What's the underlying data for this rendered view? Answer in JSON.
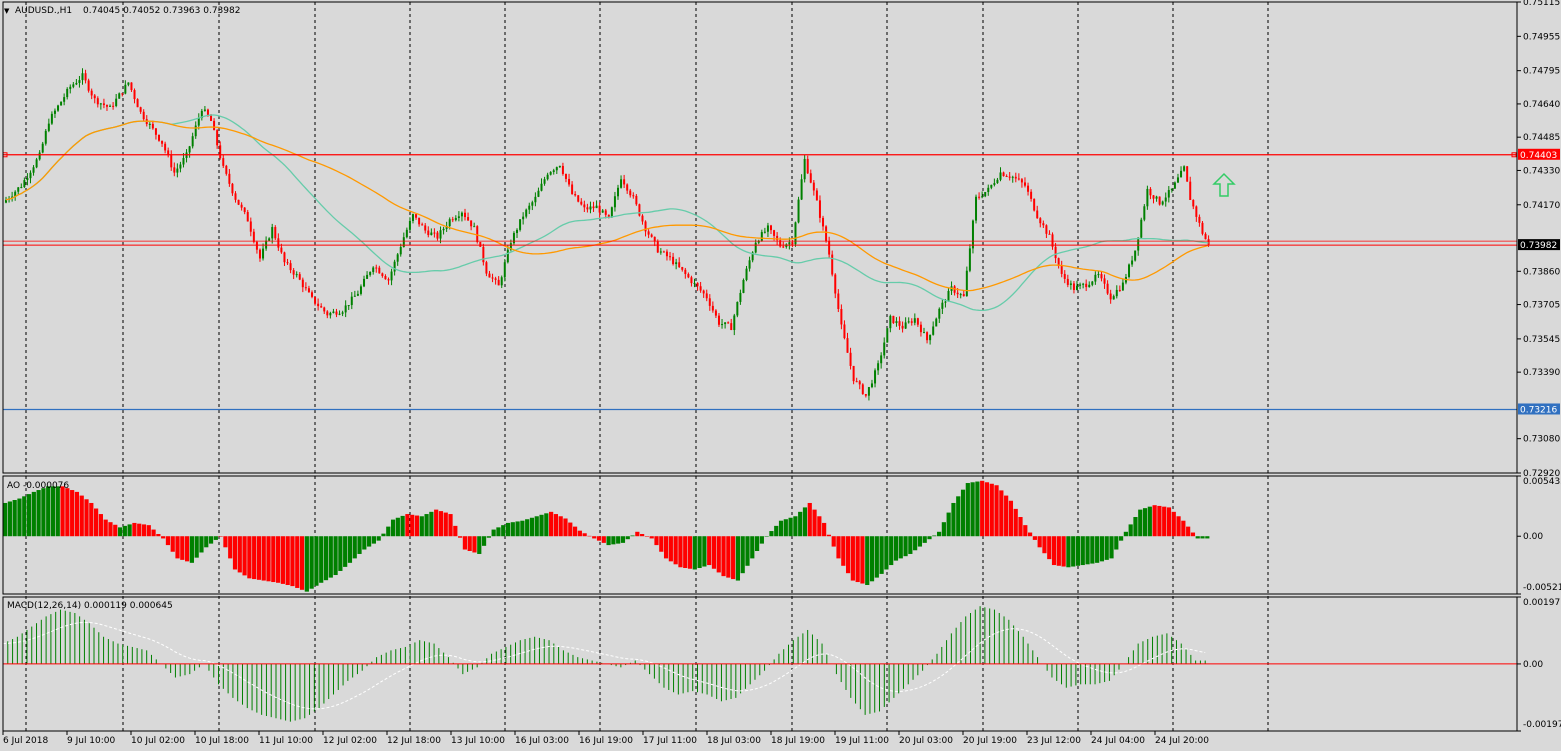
{
  "header": {
    "symbol": "AUDUSD.,H1",
    "ohlc": "0.74045 0.74052 0.73963 0.73982"
  },
  "colors": {
    "background": "#d9d9d9",
    "bull": "#008000",
    "bear": "#ff0000",
    "ma_fast": "#66ccaa",
    "ma_slow": "#ff9900",
    "resistance": "#ff0000",
    "support": "#3070c0",
    "price_line": "#ff0000",
    "arrow": "#33cc66"
  },
  "price_panel": {
    "ylim": [
      0.7292,
      0.75115
    ],
    "tick_labels": [
      "0.75115",
      "0.74955",
      "0.74795",
      "0.74640",
      "0.74485",
      "0.74330",
      "0.74170",
      "0.73860",
      "0.73705",
      "0.73545",
      "0.73390",
      "0.73080",
      "0.72920"
    ],
    "resistance": {
      "value": 0.74403,
      "label": "0.74403"
    },
    "support": {
      "value": 0.73216,
      "label": "0.73216"
    },
    "last_price": {
      "value": 0.73982,
      "label": "0.73982"
    }
  },
  "ao_panel": {
    "title": "AO -0.000076",
    "ylim": [
      -0.005212,
      0.005433
    ],
    "tick_labels": [
      "0.005433",
      "0.00",
      "-0.005212"
    ]
  },
  "macd_panel": {
    "title": "MACD(12,26,14) 0.000119 0.000645",
    "ylim": [
      -0.001975,
      0.001971
    ],
    "tick_labels": [
      "0.001971",
      "0.00",
      "-0.001975"
    ]
  },
  "x_labels": [
    "6 Jul 2018",
    "9 Jul 10:00",
    "10 Jul 02:00",
    "10 Jul 18:00",
    "11 Jul 10:00",
    "12 Jul 02:00",
    "12 Jul 18:00",
    "13 Jul 10:00",
    "16 Jul 03:00",
    "16 Jul 19:00",
    "17 Jul 11:00",
    "18 Jul 03:00",
    "18 Jul 19:00",
    "19 Jul 11:00",
    "20 Jul 03:00",
    "20 Jul 19:00",
    "23 Jul 12:00",
    "24 Jul 04:00",
    "24 Jul 20:00"
  ],
  "chart_data": {
    "type": "candlestick",
    "title": "AUDUSD.,H1",
    "series_shape": [
      [
        0,
        0.7418
      ],
      [
        6,
        0.7426
      ],
      [
        12,
        0.744
      ],
      [
        15,
        0.7456
      ],
      [
        22,
        0.7472
      ],
      [
        26,
        0.7477
      ],
      [
        30,
        0.7466
      ],
      [
        35,
        0.7462
      ],
      [
        41,
        0.7474
      ],
      [
        45,
        0.746
      ],
      [
        52,
        0.7446
      ],
      [
        56,
        0.7432
      ],
      [
        60,
        0.744
      ],
      [
        65,
        0.7462
      ],
      [
        68,
        0.7456
      ],
      [
        72,
        0.7434
      ],
      [
        76,
        0.742
      ],
      [
        80,
        0.741
      ],
      [
        84,
        0.7392
      ],
      [
        88,
        0.7406
      ],
      [
        92,
        0.739
      ],
      [
        96,
        0.7384
      ],
      [
        101,
        0.7373
      ],
      [
        106,
        0.7366
      ],
      [
        111,
        0.7368
      ],
      [
        116,
        0.7376
      ],
      [
        121,
        0.7389
      ],
      [
        126,
        0.7382
      ],
      [
        131,
        0.7402
      ],
      [
        134,
        0.7412
      ],
      [
        138,
        0.7405
      ],
      [
        142,
        0.7402
      ],
      [
        146,
        0.741
      ],
      [
        150,
        0.7414
      ],
      [
        154,
        0.7406
      ],
      [
        158,
        0.7386
      ],
      [
        162,
        0.7379
      ],
      [
        166,
        0.74
      ],
      [
        170,
        0.7412
      ],
      [
        174,
        0.742
      ],
      [
        178,
        0.7432
      ],
      [
        182,
        0.7436
      ],
      [
        186,
        0.7422
      ],
      [
        190,
        0.7415
      ],
      [
        194,
        0.7416
      ],
      [
        198,
        0.741
      ],
      [
        202,
        0.743
      ],
      [
        206,
        0.742
      ],
      [
        210,
        0.7406
      ],
      [
        214,
        0.7396
      ],
      [
        218,
        0.7392
      ],
      [
        222,
        0.7386
      ],
      [
        226,
        0.738
      ],
      [
        230,
        0.7374
      ],
      [
        234,
        0.7362
      ],
      [
        238,
        0.736
      ],
      [
        242,
        0.7382
      ],
      [
        246,
        0.74
      ],
      [
        250,
        0.7406
      ],
      [
        254,
        0.7398
      ],
      [
        258,
        0.74
      ],
      [
        262,
        0.7438
      ],
      [
        266,
        0.7418
      ],
      [
        270,
        0.7394
      ],
      [
        274,
        0.736
      ],
      [
        278,
        0.7336
      ],
      [
        282,
        0.7328
      ],
      [
        286,
        0.7342
      ],
      [
        290,
        0.7364
      ],
      [
        294,
        0.736
      ],
      [
        298,
        0.7364
      ],
      [
        302,
        0.7354
      ],
      [
        306,
        0.7368
      ],
      [
        310,
        0.7378
      ],
      [
        314,
        0.7374
      ],
      [
        318,
        0.742
      ],
      [
        322,
        0.7424
      ],
      [
        326,
        0.7432
      ],
      [
        330,
        0.743
      ],
      [
        334,
        0.7426
      ],
      [
        338,
        0.7412
      ],
      [
        342,
        0.7402
      ],
      [
        346,
        0.7384
      ],
      [
        350,
        0.7378
      ],
      [
        354,
        0.738
      ],
      [
        358,
        0.7384
      ],
      [
        362,
        0.7374
      ],
      [
        366,
        0.738
      ],
      [
        370,
        0.7396
      ],
      [
        374,
        0.7424
      ],
      [
        378,
        0.7418
      ],
      [
        382,
        0.7424
      ],
      [
        386,
        0.7434
      ],
      [
        388,
        0.742
      ],
      [
        392,
        0.7404
      ],
      [
        394,
        0.7398
      ]
    ],
    "ao_values": [
      0.003,
      0.0034,
      0.004,
      0.0045,
      0.0045,
      0.004,
      0.003,
      0.0015,
      0.0008,
      0.0012,
      0.001,
      -0.0002,
      -0.002,
      -0.0024,
      -0.001,
      0.0,
      -0.003,
      -0.0038,
      -0.004,
      -0.0042,
      -0.0045,
      -0.005,
      -0.0042,
      -0.0035,
      -0.0024,
      -0.0012,
      -0.0004,
      0.0015,
      0.002,
      0.0018,
      0.0024,
      0.002,
      -0.0012,
      -0.0016,
      0.0006,
      0.0012,
      0.0014,
      0.0018,
      0.0022,
      0.0016,
      0.0005,
      -0.0002,
      -0.0008,
      -0.0006,
      0.0004,
      -0.0002,
      -0.002,
      -0.0028,
      -0.003,
      -0.0026,
      -0.0036,
      -0.004,
      -0.002,
      0.0,
      0.0014,
      0.0018,
      0.003,
      0.0012,
      -0.002,
      -0.004,
      -0.0044,
      -0.0034,
      -0.0022,
      -0.0016,
      -0.0006,
      0.0004,
      0.003,
      0.0048,
      0.005,
      0.0046,
      0.0032,
      0.001,
      -0.001,
      -0.0026,
      -0.0028,
      -0.0026,
      -0.0024,
      -0.002,
      0.0004,
      0.0024,
      0.0028,
      0.0026,
      0.0014,
      -0.0002
    ],
    "macd_values": [
      0.0006,
      0.0008,
      0.0011,
      0.0014,
      0.0016,
      0.0015,
      0.0012,
      0.0008,
      0.0006,
      0.0005,
      0.0004,
      0.0,
      -0.0004,
      -0.0003,
      0.0,
      -0.0006,
      -0.001,
      -0.0013,
      -0.0015,
      -0.0016,
      -0.0017,
      -0.0016,
      -0.0013,
      -0.0009,
      -0.0005,
      -0.0002,
      0.0002,
      0.0004,
      0.0005,
      0.0007,
      0.0006,
      0.0002,
      -0.0003,
      -0.0001,
      0.0003,
      0.0005,
      0.0007,
      0.0008,
      0.0007,
      0.0004,
      0.0002,
      0.0001,
      0.0,
      -0.0001,
      0.0001,
      -0.0003,
      -0.0007,
      -0.0009,
      -0.0008,
      -0.0009,
      -0.0011,
      -0.001,
      -0.0006,
      -0.0002,
      0.0003,
      0.0007,
      0.001,
      0.0006,
      -0.0003,
      -0.001,
      -0.0015,
      -0.0014,
      -0.001,
      -0.0006,
      -0.0002,
      0.0003,
      0.0009,
      0.0014,
      0.0017,
      0.0016,
      0.0013,
      0.0008,
      0.0002,
      -0.0004,
      -0.0007,
      -0.0006,
      -0.0006,
      -0.0005,
      0.0,
      0.0006,
      0.0008,
      0.0009,
      0.0006,
      0.0001
    ]
  }
}
